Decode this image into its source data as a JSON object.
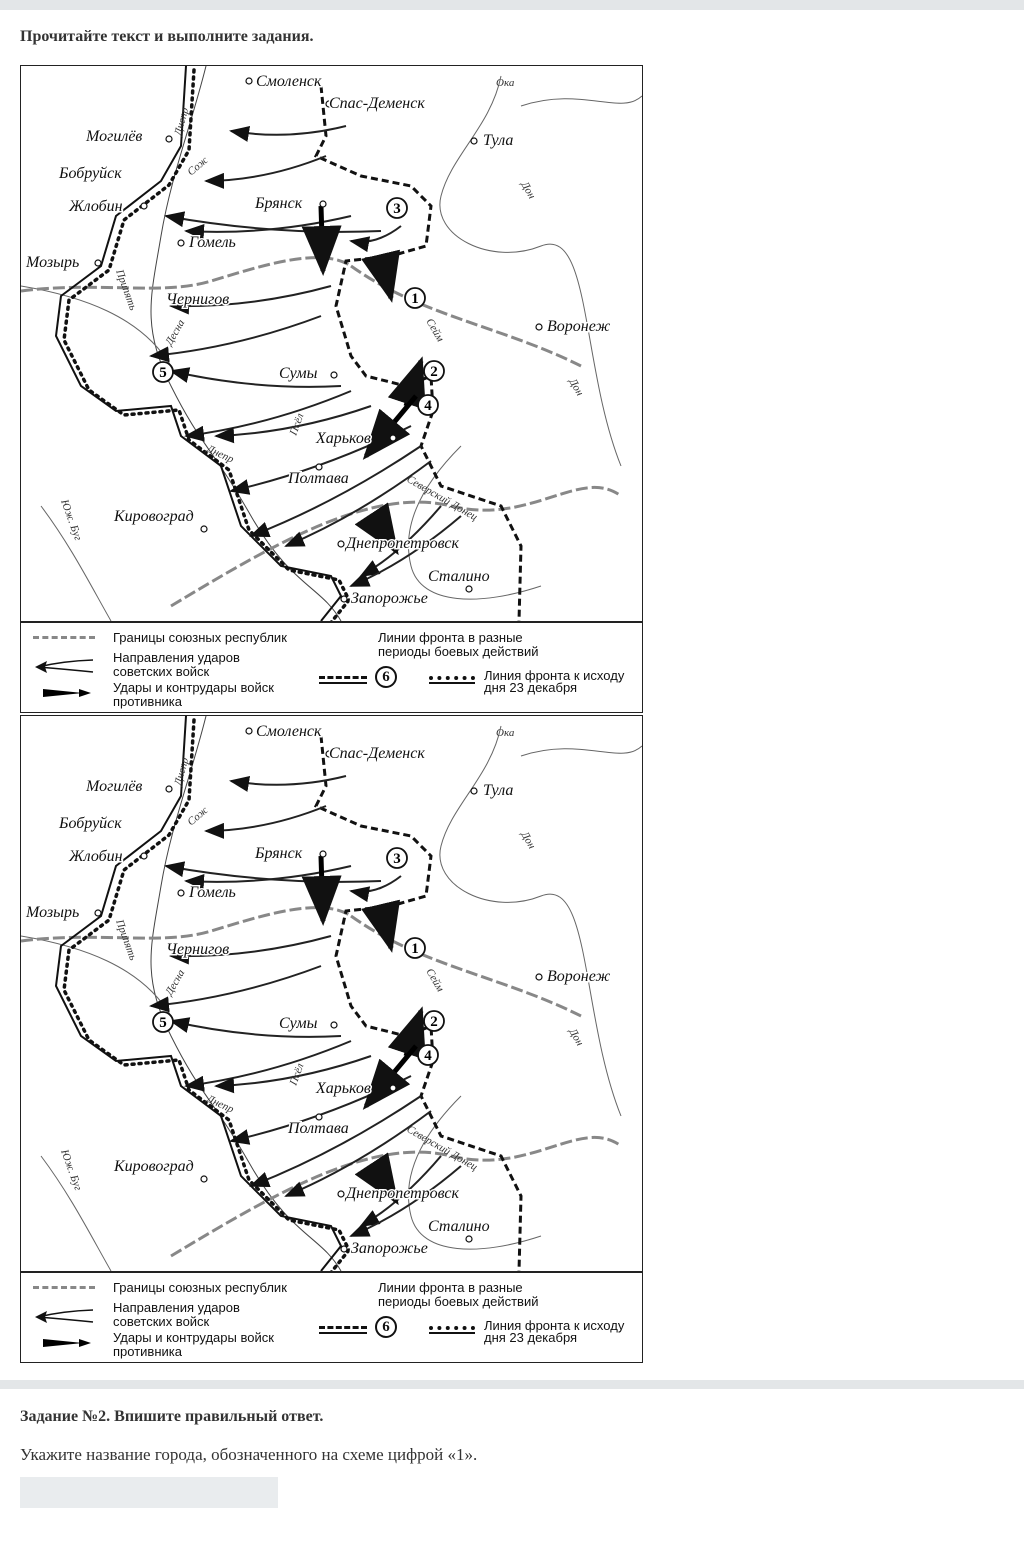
{
  "header": {
    "instruction": "Прочитайте текст и выполните задания."
  },
  "map": {
    "cities": [
      "Смоленск",
      "Спас-Деменск",
      "Тула",
      "Могилёв",
      "Бобруйск",
      "Жлобин",
      "Брянск",
      "Гомель",
      "Мозырь",
      "Чернигов",
      "Воронеж",
      "Сумы",
      "Харьков",
      "Полтава",
      "Кировоград",
      "Днепропетровск",
      "Сталино",
      "Запорожье"
    ],
    "rivers": [
      "Ока",
      "Дон",
      "Дон",
      "Днепр",
      "Сож",
      "Припять",
      "Десна",
      "Сейм",
      "Псёл",
      "Днепр",
      "Юж. Буг",
      "Северский Донец"
    ],
    "markers": [
      "1",
      "2",
      "3",
      "4",
      "5"
    ],
    "legend": {
      "borders": "Границы союзных республик",
      "soviet_strikes_1": "Направления ударов",
      "soviet_strikes_2": "советских войск",
      "enemy_strikes_1": "Удары и контрудары войск",
      "enemy_strikes_2": "противника",
      "front_lines_1": "Линии фронта в разные",
      "front_lines_2": "периоды боевых действий",
      "front_marker": "6",
      "front_dec_1": "Линия фронта к исходу",
      "front_dec_2": "дня 23 декабря"
    }
  },
  "task": {
    "title": "Задание №2. Впишите правильный ответ.",
    "question": "Укажите название города, обозначенного на схеме цифрой «1».",
    "answer_value": ""
  }
}
